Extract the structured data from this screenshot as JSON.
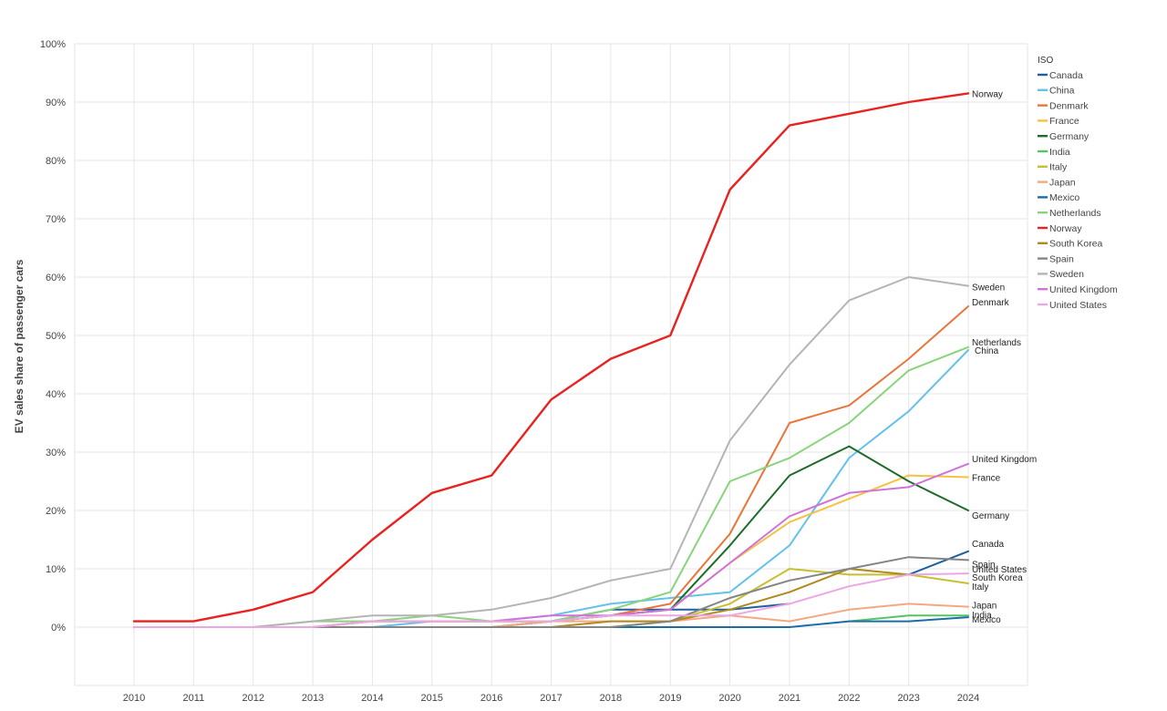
{
  "chart_data": {
    "type": "line",
    "title": "",
    "xlabel": "",
    "ylabel": "EV sales share of passenger cars",
    "ylim": [
      -10,
      100
    ],
    "yticks": [
      0,
      10,
      20,
      30,
      40,
      50,
      60,
      70,
      80,
      90,
      100
    ],
    "yticklabels": [
      "0%",
      "10%",
      "20%",
      "30%",
      "40%",
      "50%",
      "60%",
      "70%",
      "80%",
      "90%",
      "100%"
    ],
    "grid": true,
    "legend_title": "ISO",
    "legend_position": "right",
    "x": [
      "2010",
      "2011",
      "2012",
      "2013",
      "2014",
      "2015",
      "2016",
      "2017",
      "2018",
      "2019",
      "2020",
      "2021",
      "2022",
      "2023",
      "2024"
    ],
    "series": [
      {
        "name": "Canada",
        "color": "#1f5f9e",
        "end_label": "Canada",
        "values": [
          null,
          null,
          null,
          null,
          null,
          null,
          null,
          1,
          3,
          3,
          3,
          4,
          null,
          9,
          13
        ]
      },
      {
        "name": "China",
        "color": "#62c2ea",
        "end_label": "China",
        "values": [
          0,
          0,
          0,
          0,
          0,
          1,
          1,
          2,
          4,
          5,
          6,
          14,
          29,
          37,
          47.5
        ]
      },
      {
        "name": "Denmark",
        "color": "#e8753a",
        "end_label": "Denmark",
        "values": [
          0,
          0,
          0,
          0,
          1,
          1,
          1,
          1,
          2,
          4,
          16,
          35,
          38,
          46,
          55
        ]
      },
      {
        "name": "France",
        "color": "#f5c242",
        "end_label": "France",
        "values": [
          0,
          0,
          0,
          0,
          1,
          1,
          1,
          1,
          2,
          3,
          11,
          18,
          22,
          26,
          25.7
        ]
      },
      {
        "name": "Germany",
        "color": "#1d6b2a",
        "end_label": "Germany",
        "values": [
          0,
          0,
          0,
          0,
          0,
          0,
          0,
          1,
          2,
          3,
          14,
          26,
          31,
          25,
          20
        ]
      },
      {
        "name": "India",
        "color": "#56c462",
        "end_label": "India",
        "values": [
          null,
          null,
          null,
          null,
          null,
          null,
          null,
          null,
          null,
          null,
          null,
          null,
          1,
          2,
          2
        ]
      },
      {
        "name": "Italy",
        "color": "#c8bf30",
        "end_label": "Italy",
        "values": [
          0,
          0,
          0,
          0,
          0,
          0,
          0,
          0,
          0,
          1,
          4,
          10,
          9,
          9,
          7.5
        ]
      },
      {
        "name": "Japan",
        "color": "#f4a882",
        "end_label": "Japan",
        "values": [
          0,
          0,
          0,
          0,
          0,
          0,
          0,
          1,
          1,
          1,
          2,
          1,
          3,
          4,
          3.5
        ]
      },
      {
        "name": "Mexico",
        "color": "#1a6ea8",
        "end_label": "Mexico",
        "values": [
          0,
          0,
          0,
          0,
          0,
          0,
          0,
          0,
          0,
          0,
          0,
          0,
          1,
          1,
          1.7
        ]
      },
      {
        "name": "Netherlands",
        "color": "#88d47a",
        "end_label": "Netherlands",
        "values": [
          0,
          0,
          0,
          1,
          1,
          2,
          1,
          1,
          3,
          6,
          25,
          29,
          35,
          44,
          48
        ]
      },
      {
        "name": "Norway",
        "color": "#e8231f",
        "end_label": "Norway",
        "values": [
          1,
          1,
          3,
          6,
          15,
          23,
          26,
          39,
          46,
          50,
          75,
          86,
          88,
          90,
          91.5
        ]
      },
      {
        "name": "South Korea",
        "color": "#b08a1c",
        "end_label": "South Korea",
        "values": [
          0,
          0,
          0,
          0,
          0,
          0,
          0,
          0,
          1,
          1,
          3,
          6,
          10,
          9,
          null
        ]
      },
      {
        "name": "Spain",
        "color": "#858585",
        "end_label": "Spain",
        "values": [
          0,
          0,
          0,
          0,
          0,
          0,
          0,
          0,
          0,
          1,
          5,
          8,
          10,
          12,
          11.5
        ]
      },
      {
        "name": "Sweden",
        "color": "#b4b4b4",
        "end_label": "Sweden",
        "values": [
          0,
          0,
          0,
          1,
          2,
          2,
          3,
          5,
          8,
          10,
          32,
          45,
          56,
          60,
          58.5
        ]
      },
      {
        "name": "United Kingdom",
        "color": "#d073d8",
        "end_label": "United Kingdom",
        "values": [
          0,
          0,
          0,
          0,
          1,
          1,
          1,
          2,
          2,
          3,
          11,
          19,
          23,
          24,
          28
        ]
      },
      {
        "name": "United States",
        "color": "#eca6e2",
        "end_label": "United States",
        "values": [
          0,
          0,
          0,
          0,
          1,
          1,
          1,
          1,
          2,
          2,
          2,
          4,
          7,
          9,
          9.2
        ]
      }
    ]
  }
}
